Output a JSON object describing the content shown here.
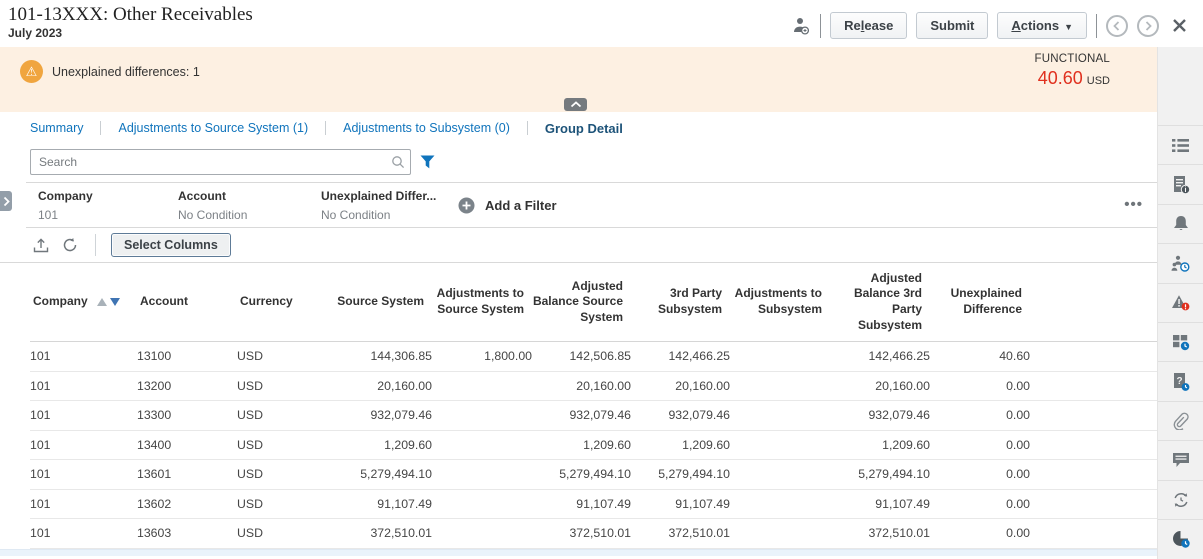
{
  "header": {
    "title": "101-13XXX: Other Receivables",
    "period": "July 2023",
    "buttons": {
      "release": "Release",
      "release_key": "l",
      "submit": "Submit",
      "actions": "Actions",
      "actions_key": "A"
    }
  },
  "banner": {
    "warning_text": "Unexplained differences: 1",
    "balance_label": "FUNCTIONAL",
    "balance_amount": "40.60",
    "balance_currency": "USD"
  },
  "tabs": [
    {
      "label": "Summary",
      "active": false
    },
    {
      "label": "Adjustments to Source System (1)",
      "active": false
    },
    {
      "label": "Adjustments to Subsystem (0)",
      "active": false
    },
    {
      "label": "Group Detail",
      "active": true
    }
  ],
  "search": {
    "placeholder": "Search"
  },
  "filter_bar": {
    "chips": [
      {
        "name": "Company",
        "value": "101"
      },
      {
        "name": "Account",
        "value": "No Condition"
      },
      {
        "name": "Unexplained Differ...",
        "value": "No Condition"
      }
    ],
    "add_filter_label": "Add a Filter"
  },
  "toolbar": {
    "select_columns_label": "Select Columns"
  },
  "table": {
    "columns": [
      "Company",
      "Account",
      "Currency",
      "Source System",
      "Adjustments to Source System",
      "Adjusted Balance Source System",
      "3rd Party Subsystem",
      "Adjustments to Subsystem",
      "Adjusted Balance 3rd Party Subsystem",
      "Unexplained Difference"
    ],
    "link_columns": [
      3,
      4,
      6
    ],
    "rows": [
      [
        "101",
        "13100",
        "USD",
        "144,306.85",
        "1,800.00",
        "142,506.85",
        "142,466.25",
        "",
        "142,466.25",
        "40.60"
      ],
      [
        "101",
        "13200",
        "USD",
        "20,160.00",
        "",
        "20,160.00",
        "20,160.00",
        "",
        "20,160.00",
        "0.00"
      ],
      [
        "101",
        "13300",
        "USD",
        "932,079.46",
        "",
        "932,079.46",
        "932,079.46",
        "",
        "932,079.46",
        "0.00"
      ],
      [
        "101",
        "13400",
        "USD",
        "1,209.60",
        "",
        "1,209.60",
        "1,209.60",
        "",
        "1,209.60",
        "0.00"
      ],
      [
        "101",
        "13601",
        "USD",
        "5,279,494.10",
        "",
        "5,279,494.10",
        "5,279,494.10",
        "",
        "5,279,494.10",
        "0.00"
      ],
      [
        "101",
        "13602",
        "USD",
        "91,107.49",
        "",
        "91,107.49",
        "91,107.49",
        "",
        "91,107.49",
        "0.00"
      ],
      [
        "101",
        "13603",
        "USD",
        "372,510.01",
        "",
        "372,510.01",
        "372,510.01",
        "",
        "372,510.01",
        "0.00"
      ]
    ]
  },
  "sidebar": {
    "icons": [
      "properties-icon",
      "instructions-icon",
      "alerts-icon",
      "workflow-icon",
      "warnings-icon",
      "attributes-icon",
      "questions-icon",
      "attachments-icon",
      "comments-icon",
      "prior-reconciliations-icon",
      "history-icon"
    ]
  },
  "colors": {
    "banner_bg": "#fdf0e2",
    "warning_gold": "#f0a53f",
    "amount_red": "#e0301e",
    "link_blue": "#1074bc",
    "active_tab_blue": "#1d5379",
    "sidebar_bg": "#f1f1f1"
  }
}
